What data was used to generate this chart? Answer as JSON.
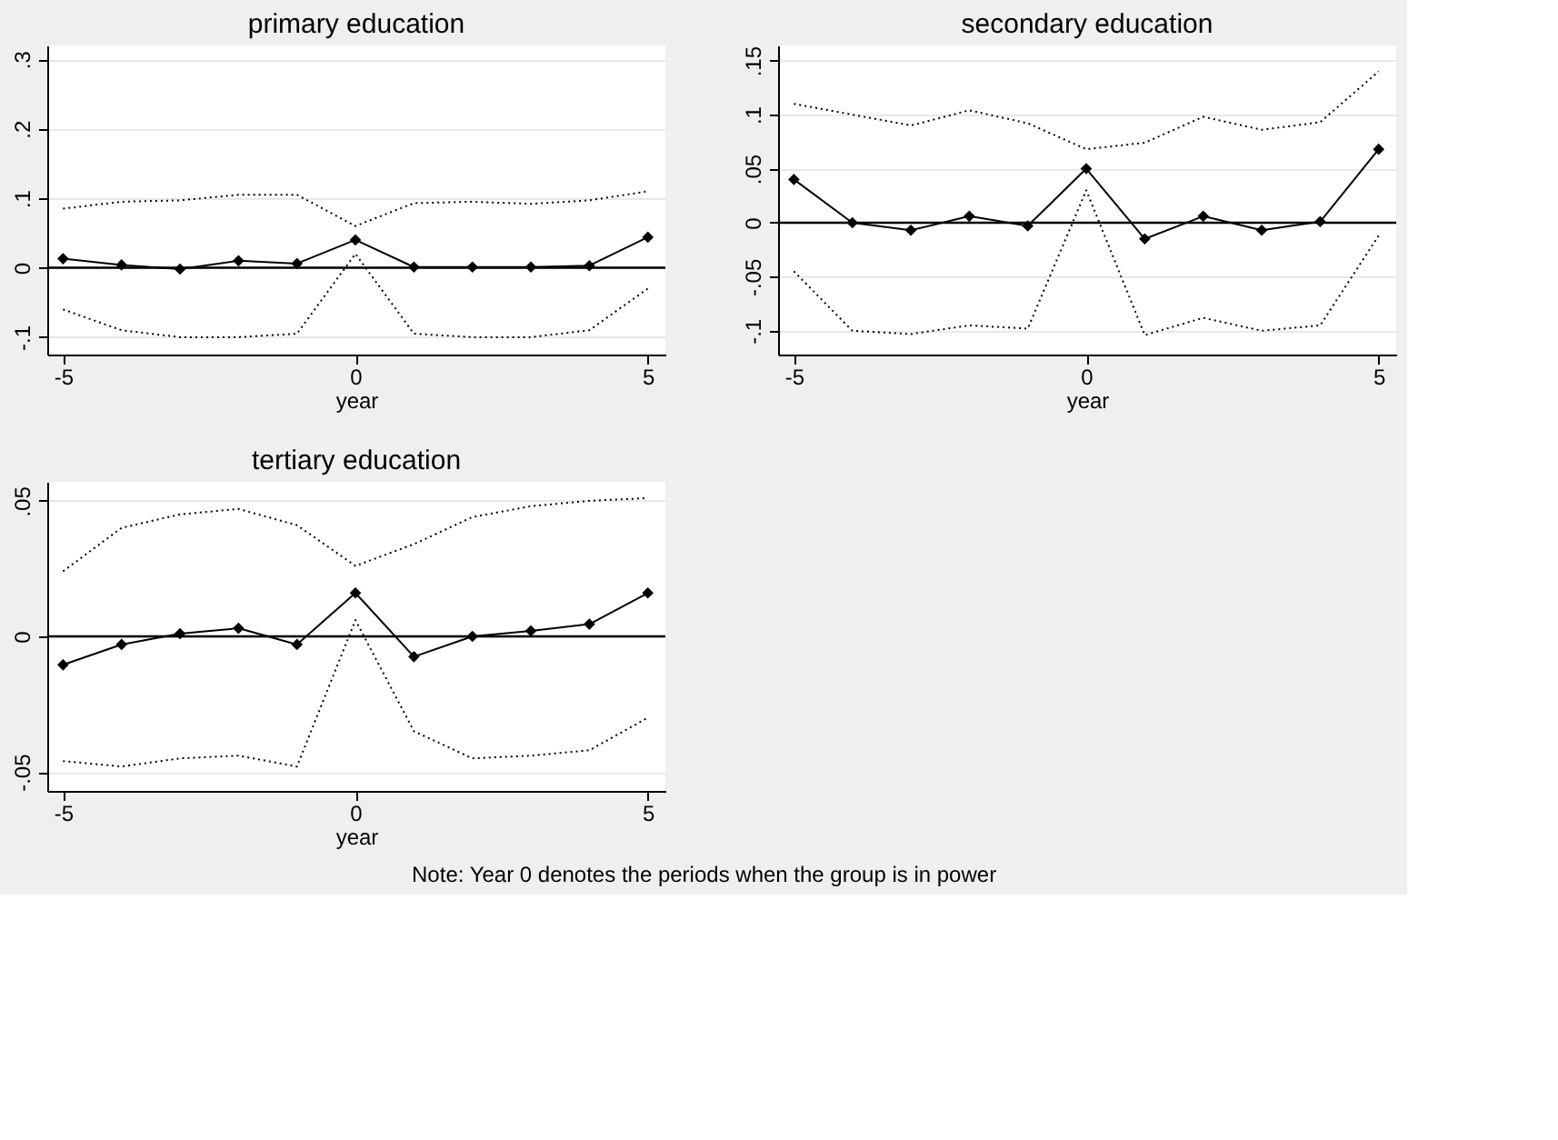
{
  "chart_data": [
    {
      "type": "line",
      "title": "primary education",
      "xlabel": "year",
      "x": [
        -5,
        -4,
        -3,
        -2,
        -1,
        0,
        1,
        2,
        3,
        4,
        5
      ],
      "xlim": [
        -5.27,
        5.3
      ],
      "xticks": [
        -5,
        0,
        5
      ],
      "ylim": [
        -0.125,
        0.32
      ],
      "yticks": [
        {
          "value": -0.1,
          "label": "-.1"
        },
        0,
        {
          "value": 0.1,
          "label": ".1"
        },
        {
          "value": 0.2,
          "label": ".2"
        },
        {
          "value": 0.3,
          "label": ".3"
        }
      ],
      "grid": "y",
      "ref_lines": [
        {
          "axis": "y",
          "value": 0,
          "color": "#000000"
        }
      ],
      "series": [
        {
          "color": "#000000",
          "marker": "diamond",
          "line_style": "solid",
          "values": [
            0.013,
            0.004,
            -0.002,
            0.01,
            0.006,
            0.04,
            0.001,
            0.001,
            0.001,
            0.003,
            0.044
          ]
        },
        {
          "color": "#000000",
          "marker": "none",
          "line_style": "dotted",
          "values": [
            0.085,
            0.095,
            0.097,
            0.105,
            0.105,
            0.06,
            0.093,
            0.095,
            0.092,
            0.097,
            0.11
          ]
        },
        {
          "color": "#000000",
          "marker": "none",
          "line_style": "dotted",
          "values": [
            -0.06,
            -0.09,
            -0.1,
            -0.1,
            -0.095,
            0.02,
            -0.095,
            -0.1,
            -0.1,
            -0.09,
            -0.03
          ]
        }
      ]
    },
    {
      "type": "line",
      "title": "secondary education",
      "xlabel": "year",
      "x": [
        -5,
        -4,
        -3,
        -2,
        -1,
        0,
        1,
        2,
        3,
        4,
        5
      ],
      "xlim": [
        -5.27,
        5.3
      ],
      "xticks": [
        -5,
        0,
        5
      ],
      "ylim": [
        -0.122,
        0.164
      ],
      "yticks": [
        {
          "value": -0.1,
          "label": "-.1"
        },
        {
          "value": -0.05,
          "label": "-.05"
        },
        0,
        {
          "value": 0.05,
          "label": ".05"
        },
        {
          "value": 0.1,
          "label": ".1"
        },
        {
          "value": 0.15,
          "label": ".15"
        }
      ],
      "grid": "y",
      "ref_lines": [
        {
          "axis": "y",
          "value": 0,
          "color": "#000000"
        }
      ],
      "series": [
        {
          "color": "#000000",
          "marker": "diamond",
          "line_style": "solid",
          "values": [
            0.04,
            0.0,
            -0.007,
            0.006,
            -0.003,
            0.05,
            -0.015,
            0.006,
            -0.007,
            0.001,
            0.068
          ]
        },
        {
          "color": "#000000",
          "marker": "none",
          "line_style": "dotted",
          "values": [
            0.11,
            0.1,
            0.09,
            0.104,
            0.092,
            0.068,
            0.074,
            0.098,
            0.086,
            0.093,
            0.14
          ]
        },
        {
          "color": "#000000",
          "marker": "none",
          "line_style": "dotted",
          "values": [
            -0.045,
            -0.1,
            -0.103,
            -0.095,
            -0.098,
            0.03,
            -0.104,
            -0.088,
            -0.1,
            -0.095,
            -0.012
          ]
        }
      ]
    },
    {
      "type": "line",
      "title": "tertiary education",
      "xlabel": "year",
      "x": [
        -5,
        -4,
        -3,
        -2,
        -1,
        0,
        1,
        2,
        3,
        4,
        5
      ],
      "xlim": [
        -5.27,
        5.3
      ],
      "xticks": [
        -5,
        0,
        5
      ],
      "ylim": [
        -0.057,
        0.057
      ],
      "yticks": [
        {
          "value": -0.05,
          "label": "-.05"
        },
        0,
        {
          "value": 0.05,
          "label": ".05"
        }
      ],
      "grid": "y",
      "ref_lines": [
        {
          "axis": "y",
          "value": 0,
          "color": "#000000"
        }
      ],
      "annotations": [
        "Note: Year 0 denotes the periods when the group is in power"
      ],
      "series": [
        {
          "color": "#000000",
          "marker": "diamond",
          "line_style": "solid",
          "values": [
            -0.0105,
            -0.003,
            0.001,
            0.003,
            -0.003,
            0.016,
            -0.0075,
            0.0,
            0.002,
            0.0045,
            0.016
          ]
        },
        {
          "color": "#000000",
          "marker": "none",
          "line_style": "dotted",
          "values": [
            0.024,
            0.04,
            0.045,
            0.047,
            0.041,
            0.026,
            0.034,
            0.044,
            0.048,
            0.05,
            0.051
          ]
        },
        {
          "color": "#000000",
          "marker": "none",
          "line_style": "dotted",
          "values": [
            -0.046,
            -0.048,
            -0.045,
            -0.044,
            -0.048,
            0.006,
            -0.035,
            -0.045,
            -0.044,
            -0.042,
            -0.03
          ]
        }
      ]
    }
  ]
}
